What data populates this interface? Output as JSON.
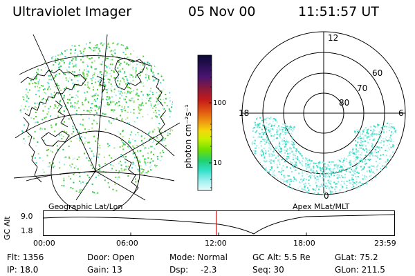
{
  "header": {
    "instrument": "Ultraviolet Imager",
    "date": "05 Nov 00",
    "time": "11:51:57 UT"
  },
  "colorbar": {
    "unit_label": "photon cm⁻²s⁻¹",
    "ticks": [
      "100",
      "10"
    ],
    "colors": [
      "#0b0b35",
      "#2a0f55",
      "#4a1470",
      "#8b1a3a",
      "#c41a1a",
      "#e25a12",
      "#f0a010",
      "#f5d80a",
      "#c8f000",
      "#70e000",
      "#20d070",
      "#30e0c8",
      "#9ff0f0",
      "#eafcfc"
    ]
  },
  "geographic_map": {
    "label": "Geographic Lat/Lon"
  },
  "polar_plot": {
    "label": "Apex MLat/MLT",
    "mlt_labels": [
      "12",
      "18",
      "6",
      "0"
    ],
    "mlat_labels": [
      "60",
      "70",
      "80"
    ]
  },
  "timeline": {
    "axis_label": "GC Alt",
    "alt_max": "9.0",
    "alt_min": "1.8",
    "ticks": [
      "00:00",
      "06:00",
      "12:00",
      "18:00",
      "23:59"
    ],
    "current_time_marker": "12:00",
    "line_color": "#000000",
    "marker_color": "#e00000"
  },
  "info": {
    "flt": "Flt: 1356",
    "ip": "IP: 18.0",
    "door": "Door: Open",
    "gain": "Gain: 13",
    "mode": "Mode: Normal",
    "dsp": "Dsp:",
    "dsp_value": "-2.3",
    "gc_alt": "GC Alt: 5.5 Re",
    "seq": "Seq: 30",
    "glat": "GLat: 75.2",
    "glon": "GLon: 211.5"
  }
}
